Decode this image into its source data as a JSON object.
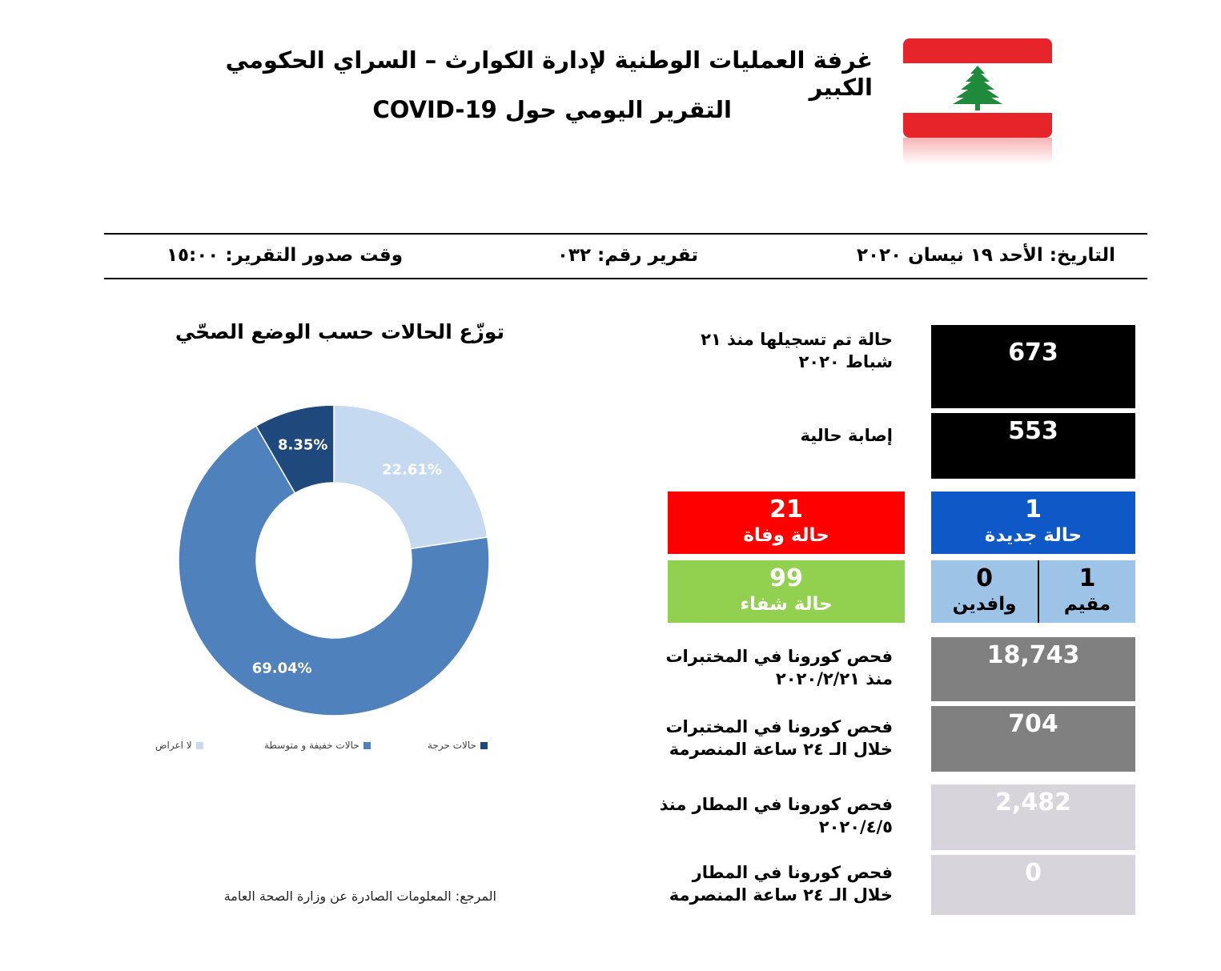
{
  "header": {
    "title_line1": "غرفة العمليات الوطنية لإدارة الكوارث – السراي الحكومي الكبير",
    "title_line2": "التقرير اليومي حول COVID-19"
  },
  "flag": {
    "icon": "lebanon-flag-icon",
    "red": "#e8242b",
    "green": "#1f8a3b"
  },
  "info_bar": {
    "date": "التاريخ: الأحد ١٩ نيسان ٢٠٢٠",
    "report_number": "تقرير رقم: ٠٣٢",
    "issue_time": "وقت صدور التقرير: ١٥:٠٠"
  },
  "stats": {
    "total_cases": {
      "label": "حالة تم تسجيلها منذ ٢١ شباط ٢٠٢٠",
      "value": "673"
    },
    "active_cases": {
      "label": "إصابة حالية",
      "value": "553"
    },
    "new_cases": {
      "value": "1",
      "label": "حالة جديدة"
    },
    "deaths": {
      "value": "21",
      "label": "حالة وفاة"
    },
    "resident": {
      "value": "1",
      "label": "مقيم"
    },
    "arrivals": {
      "value": "0",
      "label": "وافدين"
    },
    "recovered": {
      "value": "99",
      "label": "حالة شفاء"
    },
    "lab_tests_total": {
      "label_line1": "فحص كورونا في المختبرات",
      "label_line2": "منذ ٢٠٢٠/٢/٢١",
      "value": "18,743"
    },
    "lab_tests_24h": {
      "label_line1": "فحص كورونا في المختبرات",
      "label_line2": "خلال الـ ٢٤ ساعة المنصرمة",
      "value": "704"
    },
    "airport_tests_total": {
      "label_line1": "فحص كورونا في المطار منذ",
      "label_line2": "٢٠٢٠/٤/٥",
      "value": "2,482"
    },
    "airport_tests_24h": {
      "label_line1": "فحص كورونا في المطار",
      "label_line2": "خلال الـ ٢٤ ساعة المنصرمة",
      "value": "0"
    }
  },
  "chart_data": {
    "type": "pie",
    "title": "توزّع الحالات حسب الوضع الصحّي",
    "variant": "donut",
    "categories": [
      "لا اعراض",
      "حالات خفيفة و متوسطة",
      "حالات حرجة"
    ],
    "values": [
      22.61,
      69.04,
      8.35
    ],
    "labels": [
      "22.61%",
      "69.04%",
      "8.35%"
    ],
    "colors": [
      "#c5d9f1",
      "#4f81bd",
      "#1f497d"
    ],
    "legend_position": "bottom"
  },
  "source": "المرجع: المعلومات الصادرة عن وزارة الصحة العامة"
}
